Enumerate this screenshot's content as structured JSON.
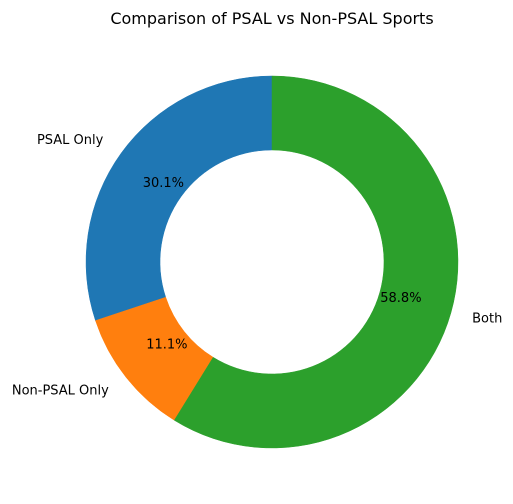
{
  "chart_data": {
    "type": "pie",
    "title": "Comparison of PSAL vs Non-PSAL Sports",
    "donut": true,
    "start": "top",
    "direction": "counterclockwise",
    "categories": [
      "PSAL Only",
      "Non-PSAL Only",
      "Both"
    ],
    "values": [
      30.1,
      11.1,
      58.8
    ],
    "value_labels": [
      "30.1%",
      "11.1%",
      "58.8%"
    ],
    "colors": [
      "#1f77b4",
      "#ff7f0e",
      "#2ca02c"
    ],
    "legend": false
  }
}
